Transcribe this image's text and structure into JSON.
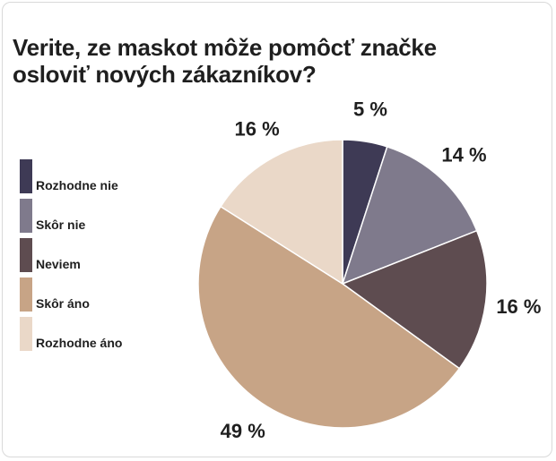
{
  "title_line1": "Verite, ze maskot môže pomôcť značke",
  "title_line2": "osloviť nových zákazníkov?",
  "chart_data": {
    "type": "pie",
    "title": "Veríte, že maskot môže pomôcť značke osloviť nových zákazníkov?",
    "categories": [
      "Rozhodne nie",
      "Skôr nie",
      "Neviem",
      "Skôr áno",
      "Rozhodne áno"
    ],
    "values": [
      5,
      14,
      16,
      49,
      16
    ],
    "labels": [
      "5 %",
      "14 %",
      "16 %",
      "49 %",
      "16 %"
    ],
    "colors": [
      "#3e3a55",
      "#7f7a8c",
      "#5e4c50",
      "#c7a486",
      "#ead8c8"
    ],
    "legend_position": "left"
  }
}
